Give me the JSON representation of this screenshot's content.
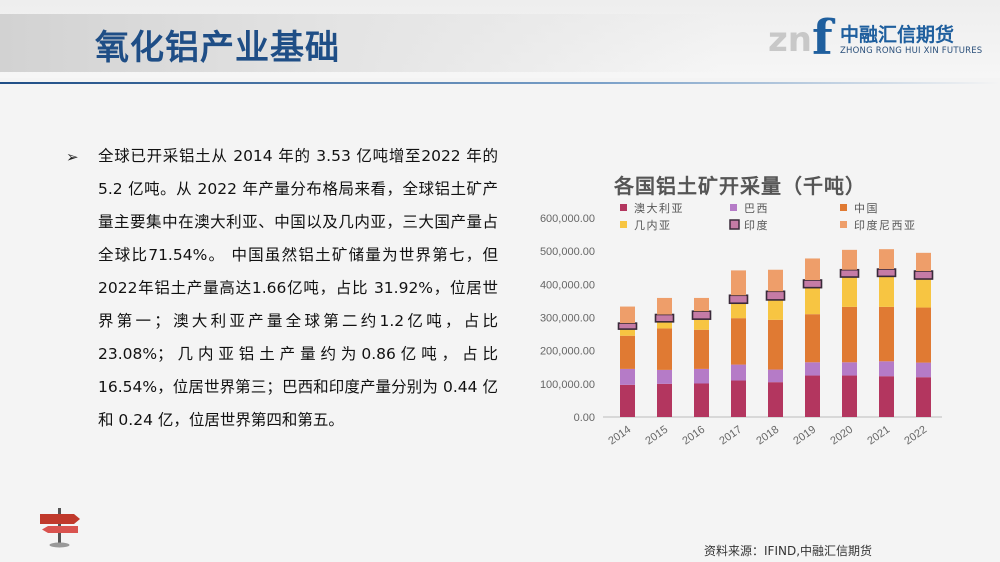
{
  "header": {
    "title": "氧化铝产业基础",
    "logo": {
      "mark_letters": "zn",
      "mark_f": "f",
      "name_cn": "中融汇信期货",
      "name_en": "ZHONG RONG HUI XIN FUTURES"
    }
  },
  "content": {
    "bullet_glyph": "➢",
    "paragraph": "全球已开采铝土从 2014 年的 3.53 亿吨增至2022 年的 5.2 亿吨。从 2022 年产量分布格局来看，全球铝土矿产量主要集中在澳大利亚、中国以及几内亚，三大国产量占全球比71.54%。 中国虽然铝土矿储量为世界第七，但2022年铝土产量高达1.66亿吨，占比 31.92%，位居世界第一；澳大利亚产量全球第二约1.2亿吨，占比23.08%；几内亚铝土产量约为0.86亿吨，占比16.54%，位居世界第三；巴西和印度产量分别为 0.44 亿和 0.24 亿，位居世界第四和第五。"
  },
  "source_note": "资料来源：IFIND,中融汇信期货",
  "chart_data": {
    "type": "bar",
    "stacked": true,
    "title": "各国铝土矿开采量（千吨）",
    "categories": [
      "2014",
      "2015",
      "2016",
      "2017",
      "2018",
      "2019",
      "2020",
      "2021",
      "2022"
    ],
    "ylim": [
      0,
      600000
    ],
    "yticks": [
      "0.00",
      "100,000.00",
      "200,000.00",
      "300,000.00",
      "400,000.00",
      "500,000.00",
      "600,000.00"
    ],
    "legend_position": "top",
    "series": [
      {
        "name": "澳大利亚",
        "color": "#b3365f",
        "values": [
          97000,
          100000,
          101000,
          110000,
          105000,
          125000,
          125000,
          123000,
          120000
        ]
      },
      {
        "name": "巴西",
        "color": "#b57bc7",
        "values": [
          48000,
          42000,
          44000,
          48000,
          38000,
          40000,
          40000,
          45000,
          44000
        ]
      },
      {
        "name": "中国",
        "color": "#e07a33",
        "values": [
          100000,
          125000,
          118000,
          140000,
          150000,
          145000,
          167000,
          164000,
          166000
        ]
      },
      {
        "name": "几内亚",
        "color": "#f7c542",
        "values": [
          20000,
          20000,
          32000,
          45000,
          60000,
          80000,
          90000,
          92000,
          86000
        ]
      },
      {
        "name": "印度",
        "color": "#c57ba6",
        "values": [
          18000,
          22000,
          24000,
          24000,
          26000,
          23000,
          22000,
          22000,
          24000
        ]
      },
      {
        "name": "印度尼西亚",
        "color": "#ee9e6a",
        "values": [
          50000,
          50000,
          40000,
          75000,
          65000,
          65000,
          60000,
          60000,
          55000
        ]
      }
    ]
  }
}
